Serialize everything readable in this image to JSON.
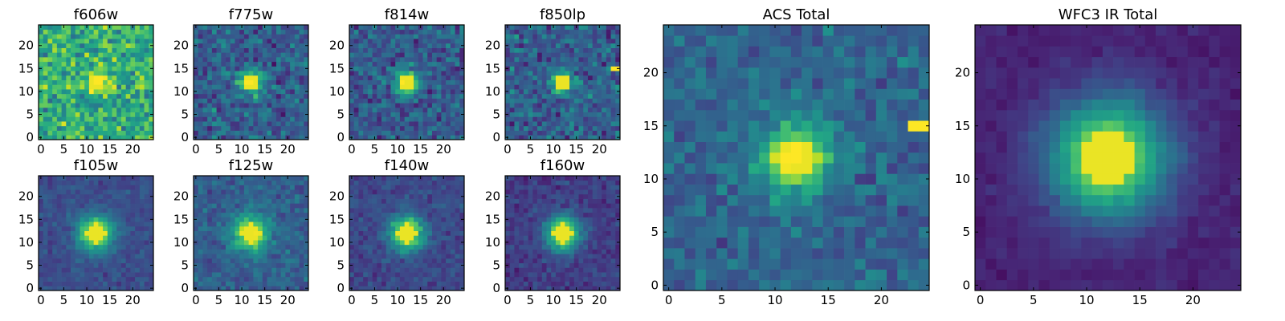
{
  "figure": {
    "colormap": "viridis",
    "grid": false
  },
  "chart_data": [
    {
      "type": "heatmap",
      "title": "f606w",
      "image_shape": [
        25,
        25
      ],
      "xlim": [
        0,
        24
      ],
      "ylim": [
        0,
        24
      ],
      "xticks": [
        "0",
        "5",
        "10",
        "15",
        "20"
      ],
      "yticks": [
        "0",
        "5",
        "10",
        "15",
        "20"
      ],
      "source_center": [
        12,
        12
      ],
      "source_sigma": 2.0,
      "source_peak": 0.45,
      "background": 0.62,
      "noise": 0.22,
      "hot_pixels": []
    },
    {
      "type": "heatmap",
      "title": "f775w",
      "image_shape": [
        25,
        25
      ],
      "xlim": [
        0,
        24
      ],
      "ylim": [
        0,
        24
      ],
      "xticks": [
        "0",
        "5",
        "10",
        "15",
        "20"
      ],
      "yticks": [
        "0",
        "5",
        "10",
        "15",
        "20"
      ],
      "source_center": [
        12,
        12
      ],
      "source_sigma": 1.9,
      "source_peak": 0.65,
      "background": 0.3,
      "noise": 0.17,
      "hot_pixels": []
    },
    {
      "type": "heatmap",
      "title": "f814w",
      "image_shape": [
        25,
        25
      ],
      "xlim": [
        0,
        24
      ],
      "ylim": [
        0,
        24
      ],
      "xticks": [
        "0",
        "5",
        "10",
        "15",
        "20"
      ],
      "yticks": [
        "0",
        "5",
        "10",
        "15",
        "20"
      ],
      "source_center": [
        12,
        12
      ],
      "source_sigma": 1.8,
      "source_peak": 0.7,
      "background": 0.28,
      "noise": 0.15,
      "hot_pixels": []
    },
    {
      "type": "heatmap",
      "title": "f850lp",
      "image_shape": [
        25,
        25
      ],
      "xlim": [
        0,
        24
      ],
      "ylim": [
        0,
        24
      ],
      "xticks": [
        "0",
        "5",
        "10",
        "15",
        "20"
      ],
      "yticks": [
        "0",
        "5",
        "10",
        "15",
        "20"
      ],
      "source_center": [
        12,
        12
      ],
      "source_sigma": 1.6,
      "source_peak": 0.6,
      "background": 0.3,
      "noise": 0.17,
      "hot_pixels": [
        [
          23,
          15
        ],
        [
          24,
          15
        ]
      ]
    },
    {
      "type": "heatmap",
      "title": "f105w",
      "image_shape": [
        25,
        25
      ],
      "xlim": [
        0,
        24
      ],
      "ylim": [
        0,
        24
      ],
      "xticks": [
        "0",
        "5",
        "10",
        "15",
        "20"
      ],
      "yticks": [
        "0",
        "5",
        "10",
        "15",
        "20"
      ],
      "source_center": [
        12,
        12
      ],
      "source_sigma": 2.7,
      "source_peak": 0.72,
      "background": 0.24,
      "noise": 0.07,
      "hot_pixels": []
    },
    {
      "type": "heatmap",
      "title": "f125w",
      "image_shape": [
        25,
        25
      ],
      "xlim": [
        0,
        24
      ],
      "ylim": [
        0,
        24
      ],
      "xticks": [
        "0",
        "5",
        "10",
        "15",
        "20"
      ],
      "yticks": [
        "0",
        "5",
        "10",
        "15",
        "20"
      ],
      "source_center": [
        12,
        12
      ],
      "source_sigma": 2.8,
      "source_peak": 0.65,
      "background": 0.3,
      "noise": 0.1,
      "hot_pixels": []
    },
    {
      "type": "heatmap",
      "title": "f140w",
      "image_shape": [
        25,
        25
      ],
      "xlim": [
        0,
        24
      ],
      "ylim": [
        0,
        24
      ],
      "xticks": [
        "0",
        "5",
        "10",
        "15",
        "20"
      ],
      "yticks": [
        "0",
        "5",
        "10",
        "15",
        "20"
      ],
      "source_center": [
        12,
        12
      ],
      "source_sigma": 2.7,
      "source_peak": 0.72,
      "background": 0.22,
      "noise": 0.08,
      "hot_pixels": []
    },
    {
      "type": "heatmap",
      "title": "f160w",
      "image_shape": [
        25,
        25
      ],
      "xlim": [
        0,
        24
      ],
      "ylim": [
        0,
        24
      ],
      "xticks": [
        "0",
        "5",
        "10",
        "15",
        "20"
      ],
      "yticks": [
        "0",
        "5",
        "10",
        "15",
        "20"
      ],
      "source_center": [
        12,
        12
      ],
      "source_sigma": 2.7,
      "source_peak": 0.75,
      "background": 0.18,
      "noise": 0.08,
      "hot_pixels": []
    },
    {
      "type": "heatmap",
      "title": "ACS Total",
      "image_shape": [
        25,
        25
      ],
      "xlim": [
        0,
        24
      ],
      "ylim": [
        0,
        24
      ],
      "xticks": [
        "0",
        "5",
        "10",
        "15",
        "20"
      ],
      "yticks": [
        "0",
        "5",
        "10",
        "15",
        "20"
      ],
      "source_center": [
        12,
        12
      ],
      "source_sigma": 2.3,
      "source_peak": 0.65,
      "background": 0.33,
      "noise": 0.12,
      "hot_pixels": [
        [
          23,
          15
        ],
        [
          24,
          15
        ]
      ]
    },
    {
      "type": "heatmap",
      "title": "WFC3 IR Total",
      "image_shape": [
        25,
        25
      ],
      "xlim": [
        0,
        24
      ],
      "ylim": [
        0,
        24
      ],
      "xticks": [
        "0",
        "5",
        "10",
        "15",
        "20"
      ],
      "yticks": [
        "0",
        "5",
        "10",
        "15",
        "20"
      ],
      "source_center": [
        12,
        12
      ],
      "source_sigma": 3.8,
      "source_peak": 0.85,
      "background": 0.1,
      "noise": 0.04,
      "hot_pixels": []
    }
  ]
}
